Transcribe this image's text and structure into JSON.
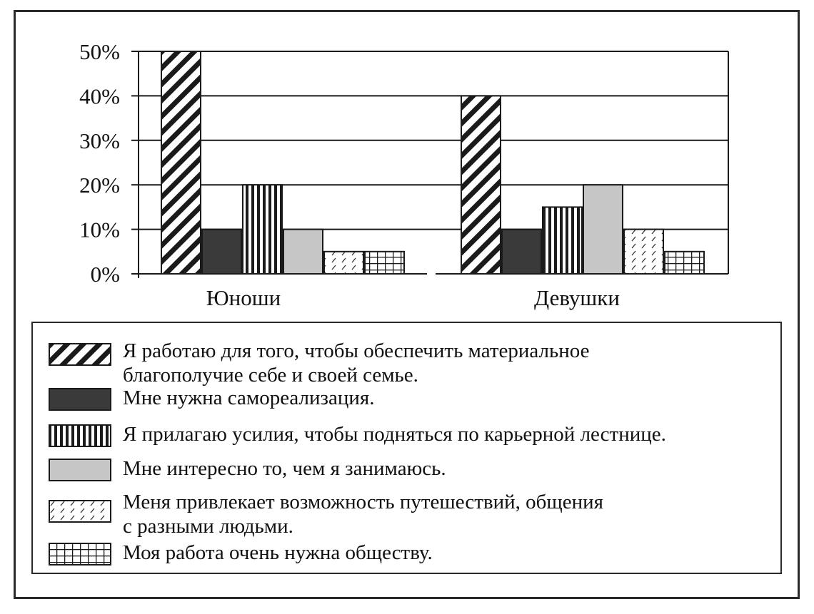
{
  "chart_data": {
    "type": "bar",
    "categories": [
      "Юноши",
      "Девушки"
    ],
    "ylim": [
      0,
      50
    ],
    "yticks": [
      0,
      10,
      20,
      30,
      40,
      50
    ],
    "ytick_labels": [
      "0%",
      "10%",
      "20%",
      "30%",
      "40%",
      "50%"
    ],
    "grid": true,
    "series": [
      {
        "name": "Я работаю для того, чтобы обеспечить материальное\nблагополучие себе и своей семье.",
        "values": [
          50,
          40
        ],
        "pattern": "diag-back",
        "color": "#ffffff"
      },
      {
        "name": "Мне нужна самореализация.",
        "values": [
          10,
          10
        ],
        "pattern": "solid-dark",
        "color": "#3a3a3a"
      },
      {
        "name": "Я прилагаю усилия, чтобы подняться по карьерной лестнице.",
        "values": [
          20,
          15
        ],
        "pattern": "vertical",
        "color": "#ffffff"
      },
      {
        "name": "Мне интересно то, чем я занимаюсь.",
        "values": [
          10,
          20
        ],
        "pattern": "solid-light",
        "color": "#c6c6c6"
      },
      {
        "name": "Меня привлекает возможность путешествий, общения\nс разными людьми.",
        "values": [
          5,
          10
        ],
        "pattern": "dashed-diag",
        "color": "#ffffff"
      },
      {
        "name": "Моя работа очень нужна обществу.",
        "values": [
          5,
          5
        ],
        "pattern": "grid",
        "color": "#ffffff"
      }
    ],
    "legend_position": "bottom"
  }
}
